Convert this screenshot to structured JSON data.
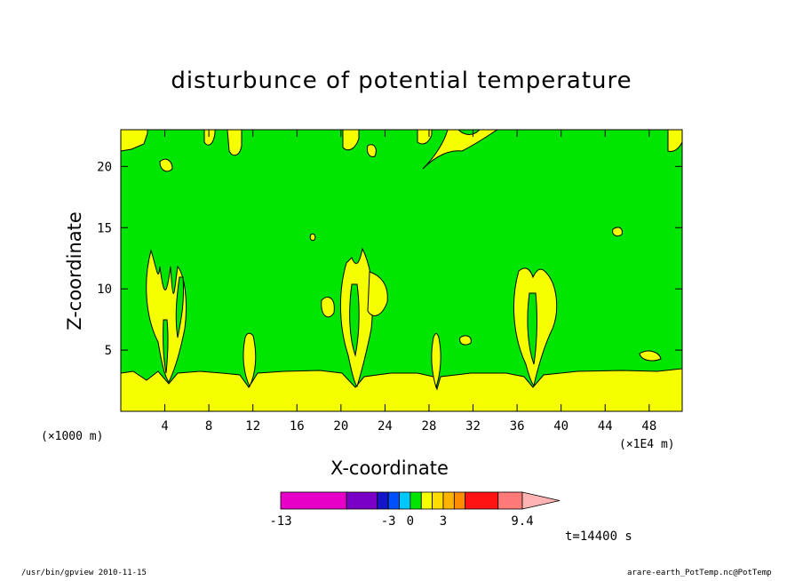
{
  "chart_data": {
    "type": "heatmap",
    "title": "disturbunce of potential temperature",
    "xlabel": "X-coordinate",
    "ylabel": "Z-coordinate",
    "x_unit_left": "(×1000 m)",
    "x_unit_right": "(×1E4 m)",
    "xlim": [
      0,
      51
    ],
    "ylim": [
      0,
      23
    ],
    "x_ticks": [
      4,
      8,
      12,
      16,
      20,
      24,
      28,
      32,
      36,
      40,
      44,
      48
    ],
    "y_ticks": [
      5,
      10,
      15,
      20
    ],
    "background_color": "#00e600",
    "colorbar": {
      "colors": [
        "#e600c8",
        "#7a00c8",
        "#1414c8",
        "#0050ff",
        "#00c8ff",
        "#00e600",
        "#f5ff00",
        "#ffdc00",
        "#ffb400",
        "#ff8c00",
        "#ff1414",
        "#ff7a78",
        "#ffb4b4"
      ],
      "labels": [
        "-13",
        "-3",
        "0",
        "3",
        "9.4"
      ]
    },
    "time_label": "t=14400 s",
    "features": [
      {
        "kind": "surface-layer",
        "x_start": 0,
        "x_end": 51,
        "z_top": 3.2
      },
      {
        "kind": "plume",
        "x_center": 4.5,
        "z_top": 13
      },
      {
        "kind": "plume",
        "x_center": 12,
        "z_top": 6
      },
      {
        "kind": "plume",
        "x_center": 21.5,
        "z_top": 13
      },
      {
        "kind": "plume",
        "x_center": 28.8,
        "z_top": 6
      },
      {
        "kind": "plume",
        "x_center": 37.5,
        "z_top": 12
      }
    ]
  },
  "footer": {
    "left": "/usr/bin/gpview   2010-11-15",
    "right": "arare-earth_PotTemp.nc@PotTemp"
  }
}
